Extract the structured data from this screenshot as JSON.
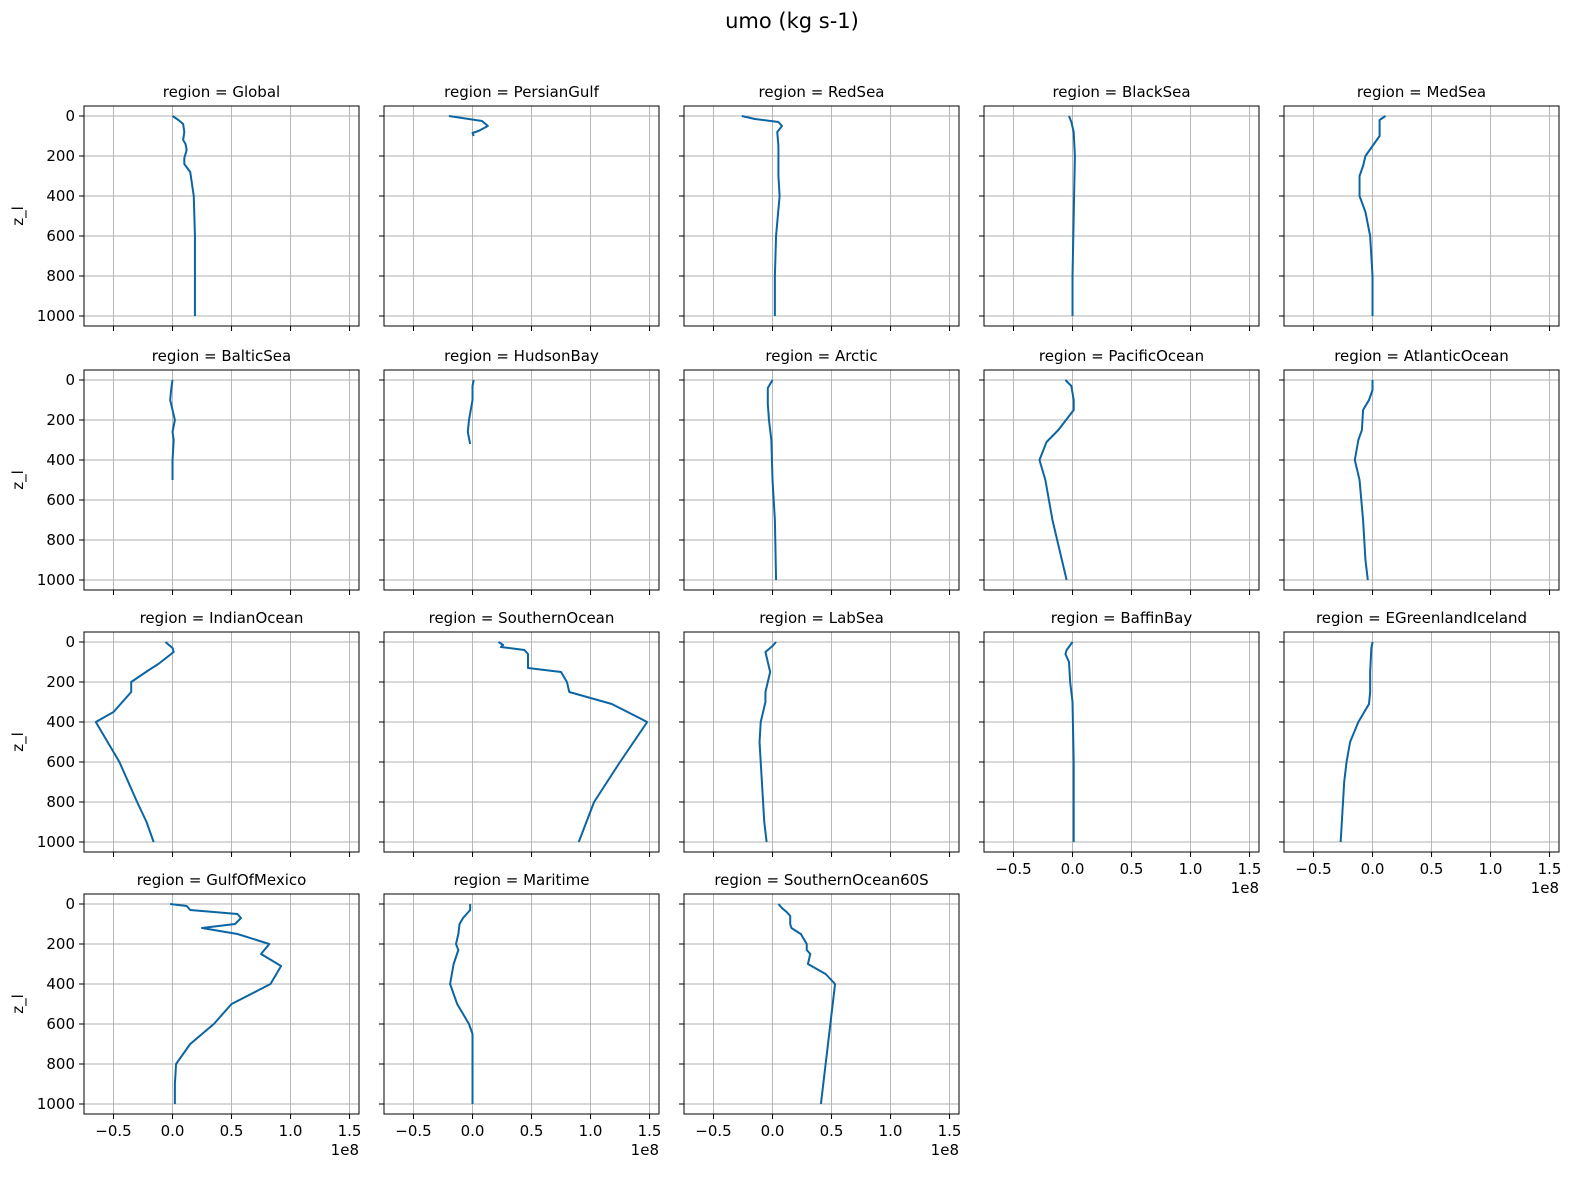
{
  "figure_title": "umo (kg s-1)",
  "colors": {
    "line": "#0b65a3",
    "grid": "#b0b0b0",
    "frame": "#000000"
  },
  "chart_data": {
    "type": "line",
    "ncols": 5,
    "xlim": [
      -75000000.0,
      158000000.0
    ],
    "ylim": [
      1050,
      -50
    ],
    "x_ticks": [
      -50000000.0,
      0,
      50000000.0,
      100000000.0,
      150000000.0
    ],
    "x_tick_labels": [
      "−0.5",
      "0.0",
      "0.5",
      "1.0",
      "1.5"
    ],
    "x_offset_label": "1e8",
    "y_ticks": [
      0,
      200,
      400,
      600,
      800,
      1000
    ],
    "y_tick_labels": [
      "0",
      "200",
      "400",
      "600",
      "800",
      "1000"
    ],
    "ylabel": "z_l",
    "grid": true,
    "panels": [
      {
        "title": "region = Global",
        "points": [
          [
            0,
            0
          ],
          [
            5000000.0,
            20
          ],
          [
            9000000.0,
            40
          ],
          [
            10000000.0,
            80
          ],
          [
            9000000.0,
            120
          ],
          [
            11000000.0,
            140
          ],
          [
            12000000.0,
            170
          ],
          [
            10000000.0,
            210
          ],
          [
            10000000.0,
            240
          ],
          [
            15000000.0,
            280
          ],
          [
            18000000.0,
            400
          ],
          [
            19000000.0,
            600
          ],
          [
            19000000.0,
            800
          ],
          [
            19000000.0,
            1000
          ]
        ]
      },
      {
        "title": "region = PersianGulf",
        "points": [
          [
            -20000000.0,
            0
          ],
          [
            8000000.0,
            25
          ],
          [
            13000000.0,
            50
          ],
          [
            5000000.0,
            75
          ],
          [
            0.0,
            85
          ],
          [
            1000000.0,
            100
          ]
        ]
      },
      {
        "title": "region = RedSea",
        "points": [
          [
            -26000000.0,
            0
          ],
          [
            -15000000.0,
            15
          ],
          [
            5000000.0,
            30
          ],
          [
            8000000.0,
            50
          ],
          [
            4000000.0,
            80
          ],
          [
            5000000.0,
            150
          ],
          [
            5000000.0,
            300
          ],
          [
            6000000.0,
            400
          ],
          [
            3000000.0,
            600
          ],
          [
            2000000.0,
            800
          ],
          [
            2000000.0,
            1000
          ]
        ]
      },
      {
        "title": "region = BlackSea",
        "points": [
          [
            -3000000.0,
            0
          ],
          [
            -1000000.0,
            30
          ],
          [
            1000000.0,
            80
          ],
          [
            2000000.0,
            200
          ],
          [
            1000000.0,
            500
          ],
          [
            0.0,
            800
          ],
          [
            0.0,
            1000
          ]
        ]
      },
      {
        "title": "region = MedSea",
        "points": [
          [
            11000000.0,
            0
          ],
          [
            6000000.0,
            20
          ],
          [
            6000000.0,
            100
          ],
          [
            0.0,
            150
          ],
          [
            -6000000.0,
            200
          ],
          [
            -8000000.0,
            250
          ],
          [
            -11000000.0,
            300
          ],
          [
            -11000000.0,
            400
          ],
          [
            -6000000.0,
            480
          ],
          [
            -2000000.0,
            600
          ],
          [
            0.0,
            800
          ],
          [
            0.0,
            1000
          ]
        ]
      },
      {
        "title": "region = BalticSea",
        "points": [
          [
            0.0,
            0
          ],
          [
            -1000000.0,
            40
          ],
          [
            -2000000.0,
            100
          ],
          [
            0.0,
            150
          ],
          [
            2000000.0,
            200
          ],
          [
            0.0,
            260
          ],
          [
            1000000.0,
            300
          ],
          [
            0.0,
            400
          ],
          [
            0.0,
            500
          ]
        ]
      },
      {
        "title": "region = HudsonBay",
        "points": [
          [
            1000000.0,
            0
          ],
          [
            0.0,
            30
          ],
          [
            0.0,
            100
          ],
          [
            -3000000.0,
            200
          ],
          [
            -4000000.0,
            260
          ],
          [
            -2000000.0,
            320
          ]
        ]
      },
      {
        "title": "region = Arctic",
        "points": [
          [
            0.0,
            0
          ],
          [
            -4000000.0,
            40
          ],
          [
            -4000000.0,
            120
          ],
          [
            -3000000.0,
            200
          ],
          [
            -1000000.0,
            300
          ],
          [
            0.0,
            500
          ],
          [
            2000000.0,
            700
          ],
          [
            3000000.0,
            1000
          ]
        ]
      },
      {
        "title": "region = PacificOcean",
        "points": [
          [
            -6000000.0,
            0
          ],
          [
            -1000000.0,
            30
          ],
          [
            1000000.0,
            100
          ],
          [
            1000000.0,
            150
          ],
          [
            -12000000.0,
            250
          ],
          [
            -22000000.0,
            310
          ],
          [
            -28000000.0,
            400
          ],
          [
            -23000000.0,
            500
          ],
          [
            -17000000.0,
            700
          ],
          [
            -9000000.0,
            900
          ],
          [
            -5000000.0,
            1000
          ]
        ]
      },
      {
        "title": "region = AtlanticOcean",
        "points": [
          [
            0.0,
            0
          ],
          [
            0.0,
            50
          ],
          [
            -3000000.0,
            100
          ],
          [
            -8000000.0,
            150
          ],
          [
            -9000000.0,
            250
          ],
          [
            -12000000.0,
            300
          ],
          [
            -15000000.0,
            400
          ],
          [
            -11000000.0,
            500
          ],
          [
            -8000000.0,
            700
          ],
          [
            -6000000.0,
            900
          ],
          [
            -4000000.0,
            1000
          ]
        ]
      },
      {
        "title": "region = IndianOcean",
        "points": [
          [
            -6000000.0,
            0
          ],
          [
            0.0,
            30
          ],
          [
            1000000.0,
            50
          ],
          [
            -12000000.0,
            110
          ],
          [
            -20000000.0,
            140
          ],
          [
            -30000000.0,
            180
          ],
          [
            -35000000.0,
            200
          ],
          [
            -35000000.0,
            250
          ],
          [
            -50000000.0,
            350
          ],
          [
            -65000000.0,
            400
          ],
          [
            -45000000.0,
            600
          ],
          [
            -30000000.0,
            800
          ],
          [
            -22000000.0,
            900
          ],
          [
            -16000000.0,
            1000
          ]
        ]
      },
      {
        "title": "region = SouthernOcean",
        "points": [
          [
            22000000.0,
            0
          ],
          [
            26000000.0,
            15
          ],
          [
            24000000.0,
            25
          ],
          [
            44000000.0,
            40
          ],
          [
            47000000.0,
            60
          ],
          [
            47000000.0,
            130
          ],
          [
            75000000.0,
            150
          ],
          [
            80000000.0,
            200
          ],
          [
            82000000.0,
            250
          ],
          [
            118000000.0,
            310
          ],
          [
            148000000.0,
            400
          ],
          [
            125000000.0,
            600
          ],
          [
            103000000.0,
            800
          ],
          [
            90000000.0,
            1000
          ]
        ]
      },
      {
        "title": "region = LabSea",
        "points": [
          [
            3000000.0,
            0
          ],
          [
            0.0,
            20
          ],
          [
            -6000000.0,
            50
          ],
          [
            -4000000.0,
            100
          ],
          [
            -2000000.0,
            150
          ],
          [
            -4000000.0,
            200
          ],
          [
            -6000000.0,
            250
          ],
          [
            -6000000.0,
            300
          ],
          [
            -8000000.0,
            350
          ],
          [
            -10000000.0,
            400
          ],
          [
            -11000000.0,
            500
          ],
          [
            -9000000.0,
            700
          ],
          [
            -7000000.0,
            900
          ],
          [
            -5000000.0,
            1000
          ]
        ]
      },
      {
        "title": "region = BaffinBay",
        "points": [
          [
            0.0,
            0
          ],
          [
            -5000000.0,
            40
          ],
          [
            -6000000.0,
            60
          ],
          [
            -3000000.0,
            100
          ],
          [
            -2000000.0,
            200
          ],
          [
            0.0,
            300
          ],
          [
            1000000.0,
            600
          ],
          [
            1000000.0,
            800
          ],
          [
            1000000.0,
            1000
          ]
        ]
      },
      {
        "title": "region = EGreenlandIceland",
        "points": [
          [
            0.0,
            0
          ],
          [
            -1000000.0,
            30
          ],
          [
            -2000000.0,
            150
          ],
          [
            -2000000.0,
            250
          ],
          [
            -3000000.0,
            310
          ],
          [
            -12000000.0,
            400
          ],
          [
            -19000000.0,
            500
          ],
          [
            -22000000.0,
            600
          ],
          [
            -24000000.0,
            700
          ],
          [
            -25000000.0,
            800
          ],
          [
            -26000000.0,
            900
          ],
          [
            -27000000.0,
            1000
          ]
        ]
      },
      {
        "title": "region = GulfOfMexico",
        "points": [
          [
            -2000000.0,
            0
          ],
          [
            12000000.0,
            10
          ],
          [
            15000000.0,
            30
          ],
          [
            55000000.0,
            50
          ],
          [
            58000000.0,
            70
          ],
          [
            53000000.0,
            100
          ],
          [
            25000000.0,
            120
          ],
          [
            55000000.0,
            150
          ],
          [
            82000000.0,
            200
          ],
          [
            75000000.0,
            250
          ],
          [
            92000000.0,
            310
          ],
          [
            83000000.0,
            400
          ],
          [
            50000000.0,
            500
          ],
          [
            35000000.0,
            600
          ],
          [
            15000000.0,
            700
          ],
          [
            3000000.0,
            800
          ],
          [
            2000000.0,
            900
          ],
          [
            2000000.0,
            1000
          ]
        ]
      },
      {
        "title": "region = Maritime",
        "points": [
          [
            -2000000.0,
            0
          ],
          [
            -2000000.0,
            30
          ],
          [
            -8000000.0,
            70
          ],
          [
            -11000000.0,
            100
          ],
          [
            -12000000.0,
            150
          ],
          [
            -14000000.0,
            200
          ],
          [
            -12000000.0,
            230
          ],
          [
            -16000000.0,
            300
          ],
          [
            -19000000.0,
            400
          ],
          [
            -13000000.0,
            500
          ],
          [
            -3000000.0,
            600
          ],
          [
            0.0,
            650
          ],
          [
            0.0,
            800
          ],
          [
            0.0,
            1000
          ]
        ]
      },
      {
        "title": "region = SouthernOcean60S",
        "points": [
          [
            5000000.0,
            0
          ],
          [
            8000000.0,
            20
          ],
          [
            12000000.0,
            40
          ],
          [
            15000000.0,
            60
          ],
          [
            15000000.0,
            100
          ],
          [
            16000000.0,
            120
          ],
          [
            24000000.0,
            150
          ],
          [
            29000000.0,
            200
          ],
          [
            29000000.0,
            230
          ],
          [
            32000000.0,
            250
          ],
          [
            30000000.0,
            300
          ],
          [
            45000000.0,
            350
          ],
          [
            53000000.0,
            400
          ],
          [
            49000000.0,
            600
          ],
          [
            45000000.0,
            800
          ],
          [
            41000000.0,
            1000
          ]
        ]
      }
    ]
  }
}
